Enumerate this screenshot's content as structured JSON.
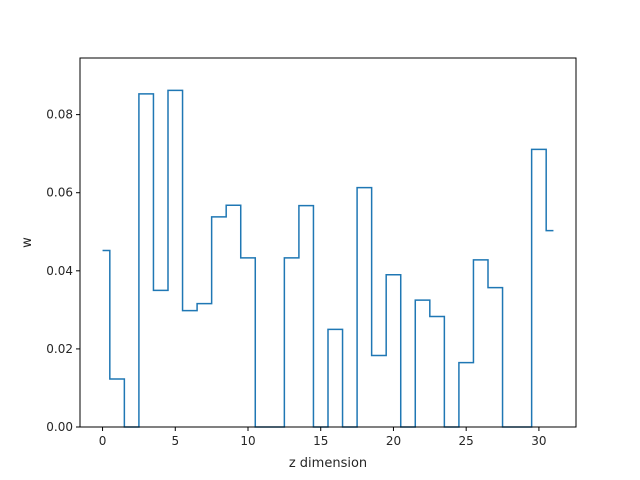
{
  "chart_data": {
    "type": "line",
    "drawstyle": "steps-mid",
    "title": "",
    "xlabel": "z dimension",
    "ylabel": "w",
    "xlim": [
      -1.55,
      32.55
    ],
    "ylim": [
      0.0,
      0.0945
    ],
    "grid": false,
    "x_ticks": [
      0,
      5,
      10,
      15,
      20,
      25,
      30
    ],
    "y_ticks": [
      0.0,
      0.02,
      0.04,
      0.06,
      0.08
    ],
    "y_tick_labels": [
      "0.00",
      "0.02",
      "0.04",
      "0.06",
      "0.08"
    ],
    "series": [
      {
        "color": "#1f77b4",
        "x": [
          0,
          1,
          2,
          3,
          4,
          5,
          6,
          7,
          8,
          9,
          10,
          11,
          12,
          13,
          14,
          15,
          16,
          17,
          18,
          19,
          20,
          21,
          22,
          23,
          24,
          25,
          26,
          27,
          28,
          29,
          30,
          31
        ],
        "y": [
          0.0452,
          0.0123,
          0.0,
          0.0853,
          0.035,
          0.0862,
          0.0298,
          0.0316,
          0.0538,
          0.0568,
          0.0433,
          0.0,
          0.0,
          0.0433,
          0.0567,
          0.0,
          0.025,
          0.0,
          0.0613,
          0.0183,
          0.039,
          0.0,
          0.0325,
          0.0283,
          0.0,
          0.0165,
          0.0428,
          0.0357,
          0.0,
          0.0,
          0.0711,
          0.0503
        ]
      }
    ]
  }
}
